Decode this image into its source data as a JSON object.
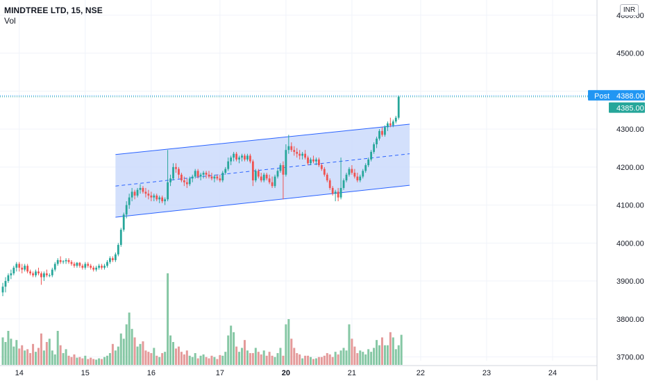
{
  "header": {
    "symbol": "MINDTREE LTD, 15, NSE",
    "volume_label": "Vol",
    "currency": "INR"
  },
  "price_labels": {
    "post_label": "Post",
    "post_value": "4388.00",
    "last_value": "4385.00"
  },
  "colors": {
    "up": "#26a69a",
    "down": "#ef5350",
    "vol_up": "#85c7a4",
    "vol_down": "#e49a9a",
    "channel_line": "#2962ff",
    "channel_fill": "#c8d8fb",
    "post_badge": "#2196f3",
    "last_badge": "#26a69a"
  },
  "chart_data": {
    "type": "candlestick",
    "y_axis": {
      "min": 3690,
      "max": 4640,
      "ticks": [
        3700,
        3800,
        3900,
        4000,
        4100,
        4200,
        4300,
        4400,
        4500,
        4600
      ],
      "tick_labels": [
        "3700.00",
        "3800.00",
        "3900.00",
        "4000.00",
        "4100.00",
        "4200.00",
        "4300.00",
        "",
        "4500.00",
        "4600.00"
      ]
    },
    "x_axis": {
      "labels": [
        "14",
        "15",
        "16",
        "17",
        "20",
        "21",
        "22",
        "23",
        "24"
      ],
      "bold": [
        "20"
      ],
      "label_bar_index": [
        6,
        30,
        54,
        79,
        103,
        127,
        152,
        176,
        200
      ],
      "total_slots": 234
    },
    "ohlc": [
      [
        3870,
        3895,
        3860,
        3885
      ],
      [
        3885,
        3910,
        3870,
        3900
      ],
      [
        3900,
        3920,
        3895,
        3915
      ],
      [
        3915,
        3930,
        3905,
        3920
      ],
      [
        3920,
        3940,
        3915,
        3935
      ],
      [
        3935,
        3950,
        3925,
        3945
      ],
      [
        3945,
        3950,
        3925,
        3935
      ],
      [
        3935,
        3945,
        3920,
        3930
      ],
      [
        3930,
        3945,
        3925,
        3940
      ],
      [
        3940,
        3945,
        3920,
        3925
      ],
      [
        3925,
        3930,
        3915,
        3920
      ],
      [
        3920,
        3925,
        3910,
        3915
      ],
      [
        3915,
        3930,
        3910,
        3925
      ],
      [
        3925,
        3935,
        3915,
        3920
      ],
      [
        3920,
        3925,
        3890,
        3910
      ],
      [
        3910,
        3925,
        3900,
        3920
      ],
      [
        3920,
        3930,
        3910,
        3915
      ],
      [
        3915,
        3920,
        3910,
        3915
      ],
      [
        3915,
        3935,
        3910,
        3930
      ],
      [
        3930,
        3950,
        3925,
        3945
      ],
      [
        3945,
        3960,
        3940,
        3955
      ],
      [
        3955,
        3965,
        3945,
        3950
      ],
      [
        3950,
        3955,
        3945,
        3952
      ],
      [
        3952,
        3960,
        3945,
        3955
      ],
      [
        3955,
        3960,
        3945,
        3950
      ],
      [
        3950,
        3955,
        3940,
        3945
      ],
      [
        3945,
        3950,
        3935,
        3940
      ],
      [
        3940,
        3950,
        3935,
        3948
      ],
      [
        3948,
        3950,
        3935,
        3940
      ],
      [
        3940,
        3945,
        3930,
        3935
      ],
      [
        3935,
        3950,
        3930,
        3945
      ],
      [
        3945,
        3950,
        3935,
        3940
      ],
      [
        3940,
        3945,
        3930,
        3935
      ],
      [
        3935,
        3940,
        3925,
        3930
      ],
      [
        3930,
        3940,
        3925,
        3935
      ],
      [
        3935,
        3945,
        3930,
        3940
      ],
      [
        3940,
        3945,
        3930,
        3935
      ],
      [
        3935,
        3945,
        3930,
        3940
      ],
      [
        3940,
        3955,
        3935,
        3950
      ],
      [
        3950,
        3965,
        3945,
        3960
      ],
      [
        3960,
        3965,
        3950,
        3955
      ],
      [
        3955,
        3975,
        3950,
        3970
      ],
      [
        3970,
        4000,
        3965,
        3995
      ],
      [
        3995,
        4040,
        3990,
        4035
      ],
      [
        4035,
        4080,
        4030,
        4075
      ],
      [
        4075,
        4110,
        4065,
        4100
      ],
      [
        4100,
        4130,
        4090,
        4120
      ],
      [
        4120,
        4145,
        4110,
        4135
      ],
      [
        4135,
        4140,
        4115,
        4125
      ],
      [
        4125,
        4145,
        4120,
        4140
      ],
      [
        4140,
        4155,
        4130,
        4145
      ],
      [
        4145,
        4150,
        4130,
        4135
      ],
      [
        4135,
        4145,
        4120,
        4130
      ],
      [
        4130,
        4140,
        4115,
        4125
      ],
      [
        4125,
        4135,
        4110,
        4120
      ],
      [
        4120,
        4130,
        4110,
        4125
      ],
      [
        4125,
        4130,
        4110,
        4115
      ],
      [
        4115,
        4125,
        4105,
        4120
      ],
      [
        4120,
        4125,
        4105,
        4110
      ],
      [
        4110,
        4120,
        4100,
        4115
      ],
      [
        4115,
        4245,
        4110,
        4160
      ],
      [
        4160,
        4180,
        4150,
        4170
      ],
      [
        4170,
        4210,
        4165,
        4200
      ],
      [
        4200,
        4210,
        4185,
        4195
      ],
      [
        4195,
        4200,
        4170,
        4180
      ],
      [
        4180,
        4185,
        4160,
        4165
      ],
      [
        4165,
        4175,
        4150,
        4160
      ],
      [
        4160,
        4170,
        4145,
        4155
      ],
      [
        4155,
        4175,
        4150,
        4170
      ],
      [
        4170,
        4180,
        4160,
        4175
      ],
      [
        4175,
        4195,
        4170,
        4190
      ],
      [
        4190,
        4195,
        4170,
        4175
      ],
      [
        4175,
        4185,
        4165,
        4180
      ],
      [
        4180,
        4190,
        4170,
        4185
      ],
      [
        4185,
        4190,
        4170,
        4180
      ],
      [
        4180,
        4190,
        4170,
        4175
      ],
      [
        4175,
        4185,
        4165,
        4170
      ],
      [
        4170,
        4180,
        4160,
        4175
      ],
      [
        4175,
        4180,
        4165,
        4170
      ],
      [
        4170,
        4180,
        4160,
        4165
      ],
      [
        4165,
        4190,
        4160,
        4185
      ],
      [
        4185,
        4200,
        4180,
        4195
      ],
      [
        4195,
        4225,
        4190,
        4215
      ],
      [
        4215,
        4230,
        4205,
        4225
      ],
      [
        4225,
        4240,
        4215,
        4235
      ],
      [
        4235,
        4240,
        4215,
        4220
      ],
      [
        4220,
        4230,
        4210,
        4225
      ],
      [
        4225,
        4235,
        4215,
        4230
      ],
      [
        4230,
        4235,
        4215,
        4220
      ],
      [
        4220,
        4235,
        4215,
        4230
      ],
      [
        4230,
        4235,
        4210,
        4215
      ],
      [
        4215,
        4220,
        4150,
        4165
      ],
      [
        4165,
        4195,
        4160,
        4190
      ],
      [
        4190,
        4195,
        4170,
        4175
      ],
      [
        4175,
        4185,
        4160,
        4165
      ],
      [
        4165,
        4185,
        4160,
        4180
      ],
      [
        4180,
        4185,
        4165,
        4170
      ],
      [
        4170,
        4180,
        4155,
        4160
      ],
      [
        4160,
        4175,
        4145,
        4150
      ],
      [
        4150,
        4180,
        4145,
        4175
      ],
      [
        4175,
        4195,
        4170,
        4190
      ],
      [
        4190,
        4210,
        4185,
        4205
      ],
      [
        4205,
        4215,
        4115,
        4180
      ],
      [
        4180,
        4260,
        4175,
        4245
      ],
      [
        4245,
        4285,
        4235,
        4255
      ],
      [
        4255,
        4265,
        4240,
        4245
      ],
      [
        4245,
        4255,
        4230,
        4240
      ],
      [
        4240,
        4250,
        4225,
        4235
      ],
      [
        4235,
        4245,
        4220,
        4230
      ],
      [
        4230,
        4240,
        4220,
        4235
      ],
      [
        4235,
        4245,
        4220,
        4225
      ],
      [
        4225,
        4230,
        4205,
        4210
      ],
      [
        4210,
        4225,
        4205,
        4220
      ],
      [
        4220,
        4230,
        4210,
        4215
      ],
      [
        4215,
        4225,
        4205,
        4220
      ],
      [
        4220,
        4225,
        4200,
        4205
      ],
      [
        4205,
        4210,
        4190,
        4195
      ],
      [
        4195,
        4200,
        4175,
        4180
      ],
      [
        4180,
        4185,
        4160,
        4165
      ],
      [
        4165,
        4170,
        4140,
        4145
      ],
      [
        4145,
        4150,
        4125,
        4130
      ],
      [
        4130,
        4140,
        4110,
        4135
      ],
      [
        4135,
        4145,
        4110,
        4120
      ],
      [
        4120,
        4225,
        4115,
        4145
      ],
      [
        4145,
        4170,
        4140,
        4165
      ],
      [
        4165,
        4185,
        4160,
        4180
      ],
      [
        4180,
        4200,
        4175,
        4195
      ],
      [
        4195,
        4205,
        4180,
        4185
      ],
      [
        4185,
        4195,
        4170,
        4175
      ],
      [
        4175,
        4185,
        4160,
        4165
      ],
      [
        4165,
        4180,
        4160,
        4175
      ],
      [
        4175,
        4195,
        4170,
        4190
      ],
      [
        4190,
        4210,
        4185,
        4205
      ],
      [
        4205,
        4225,
        4200,
        4220
      ],
      [
        4220,
        4245,
        4215,
        4240
      ],
      [
        4240,
        4265,
        4235,
        4260
      ],
      [
        4260,
        4280,
        4250,
        4275
      ],
      [
        4275,
        4300,
        4270,
        4295
      ],
      [
        4295,
        4305,
        4280,
        4285
      ],
      [
        4285,
        4310,
        4280,
        4305
      ],
      [
        4305,
        4320,
        4295,
        4315
      ],
      [
        4315,
        4330,
        4305,
        4310
      ],
      [
        4310,
        4325,
        4305,
        4320
      ],
      [
        4320,
        4335,
        4315,
        4330
      ],
      [
        4330,
        4388,
        4325,
        4385
      ]
    ],
    "volume": [
      42,
      35,
      52,
      40,
      28,
      38,
      25,
      30,
      22,
      24,
      18,
      32,
      20,
      26,
      48,
      22,
      35,
      40,
      22,
      16,
      52,
      30,
      18,
      24,
      14,
      12,
      16,
      11,
      12,
      10,
      14,
      9,
      11,
      9,
      8,
      10,
      9,
      12,
      14,
      18,
      32,
      22,
      28,
      48,
      40,
      62,
      80,
      55,
      42,
      28,
      32,
      36,
      22,
      20,
      18,
      26,
      14,
      12,
      18,
      20,
      140,
      45,
      35,
      25,
      28,
      20,
      16,
      22,
      14,
      12,
      18,
      10,
      14,
      16,
      12,
      10,
      14,
      12,
      9,
      15,
      14,
      20,
      45,
      60,
      50,
      28,
      20,
      26,
      38,
      22,
      18,
      18,
      26,
      20,
      16,
      22,
      14,
      20,
      14,
      12,
      18,
      26,
      14,
      62,
      70,
      40,
      26,
      18,
      16,
      10,
      14,
      14,
      12,
      9,
      10,
      12,
      12,
      14,
      18,
      16,
      12,
      20,
      16,
      22,
      26,
      22,
      62,
      40,
      28,
      18,
      22,
      20,
      16,
      24,
      20,
      26,
      38,
      30,
      42,
      30,
      30,
      50,
      42,
      24,
      30,
      46
    ],
    "channel": {
      "upper_start": [
        41,
        4233
      ],
      "upper_end": [
        148,
        4313
      ],
      "mid_start": [
        41,
        4150
      ],
      "mid_end": [
        148,
        4235
      ],
      "lower_start": [
        41,
        4068
      ],
      "lower_end": [
        148,
        4152
      ]
    },
    "reference_lines": [
      {
        "name": "post",
        "value": 4388
      },
      {
        "name": "last",
        "value": 4385
      }
    ]
  }
}
